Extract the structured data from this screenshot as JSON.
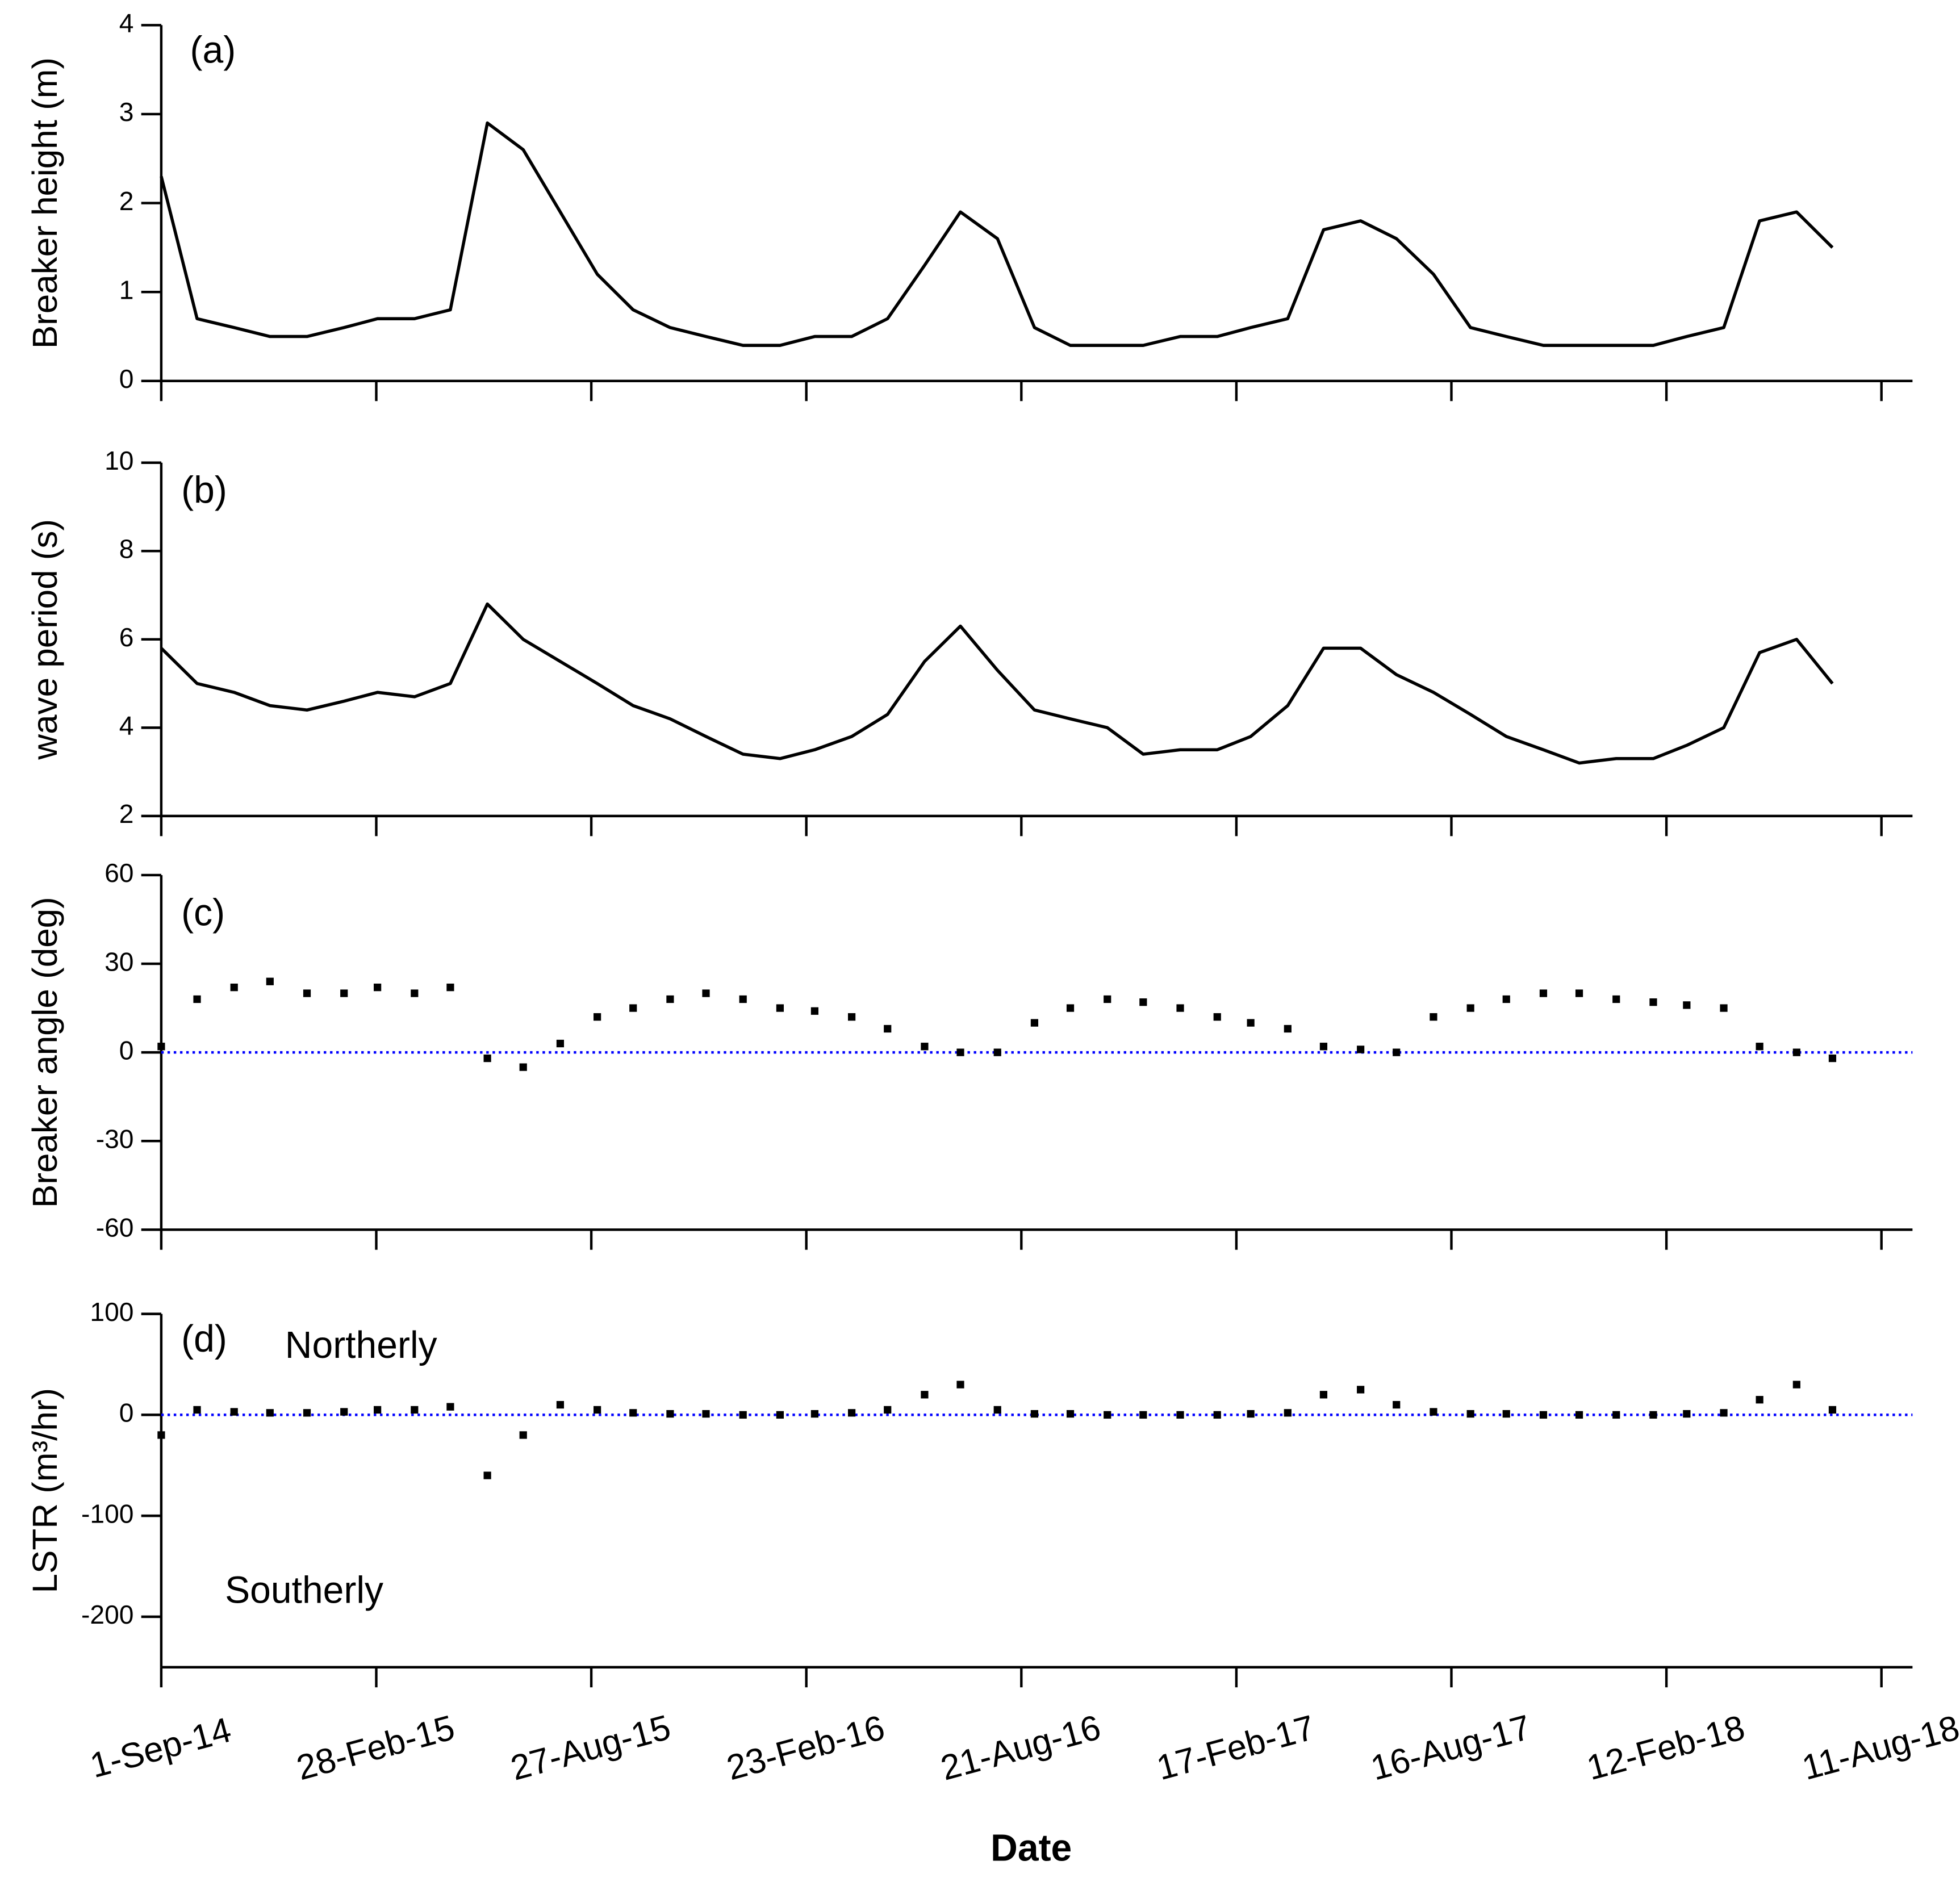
{
  "chart_data": [
    {
      "type": "line",
      "panel_label": "(a)",
      "y_label": "Breaker height (m)",
      "color": "#000000",
      "x": [
        "2014-09-01",
        "2014-10-01",
        "2014-11-01",
        "2014-12-01",
        "2015-01-01",
        "2015-02-01",
        "2015-03-01",
        "2015-04-01",
        "2015-05-01",
        "2015-06-01",
        "2015-07-01",
        "2015-08-01",
        "2015-09-01",
        "2015-10-01",
        "2015-11-01",
        "2015-12-01",
        "2016-01-01",
        "2016-02-01",
        "2016-03-01",
        "2016-04-01",
        "2016-05-01",
        "2016-06-01",
        "2016-07-01",
        "2016-08-01",
        "2016-09-01",
        "2016-10-01",
        "2016-11-01",
        "2016-12-01",
        "2017-01-01",
        "2017-02-01",
        "2017-03-01",
        "2017-04-01",
        "2017-05-01",
        "2017-06-01",
        "2017-07-01",
        "2017-08-01",
        "2017-09-01",
        "2017-10-01",
        "2017-11-01",
        "2017-12-01",
        "2018-01-01",
        "2018-02-01",
        "2018-03-01",
        "2018-04-01",
        "2018-05-01",
        "2018-06-01",
        "2018-07-01"
      ],
      "values": [
        2.3,
        0.7,
        0.6,
        0.5,
        0.5,
        0.6,
        0.7,
        0.7,
        0.8,
        2.9,
        2.6,
        1.9,
        1.2,
        0.8,
        0.6,
        0.5,
        0.4,
        0.4,
        0.5,
        0.5,
        0.7,
        1.3,
        1.9,
        1.6,
        0.6,
        0.4,
        0.4,
        0.4,
        0.5,
        0.5,
        0.6,
        0.7,
        1.7,
        1.8,
        1.6,
        1.2,
        0.6,
        0.5,
        0.4,
        0.4,
        0.4,
        0.4,
        0.5,
        0.6,
        1.8,
        1.9,
        1.5
      ],
      "ylim": [
        0,
        4
      ],
      "yticks": [
        0,
        1,
        2,
        3,
        4
      ]
    },
    {
      "type": "line",
      "panel_label": "(b)",
      "y_label": "wave period (s)",
      "color": "#000000",
      "x": [
        "2014-09-01",
        "2014-10-01",
        "2014-11-01",
        "2014-12-01",
        "2015-01-01",
        "2015-02-01",
        "2015-03-01",
        "2015-04-01",
        "2015-05-01",
        "2015-06-01",
        "2015-07-01",
        "2015-08-01",
        "2015-09-01",
        "2015-10-01",
        "2015-11-01",
        "2015-12-01",
        "2016-01-01",
        "2016-02-01",
        "2016-03-01",
        "2016-04-01",
        "2016-05-01",
        "2016-06-01",
        "2016-07-01",
        "2016-08-01",
        "2016-09-01",
        "2016-10-01",
        "2016-11-01",
        "2016-12-01",
        "2017-01-01",
        "2017-02-01",
        "2017-03-01",
        "2017-04-01",
        "2017-05-01",
        "2017-06-01",
        "2017-07-01",
        "2017-08-01",
        "2017-09-01",
        "2017-10-01",
        "2017-11-01",
        "2017-12-01",
        "2018-01-01",
        "2018-02-01",
        "2018-03-01",
        "2018-04-01",
        "2018-05-01",
        "2018-06-01",
        "2018-07-01"
      ],
      "values": [
        5.8,
        5.0,
        4.8,
        4.5,
        4.4,
        4.6,
        4.8,
        4.7,
        5.0,
        6.8,
        6.0,
        5.5,
        5.0,
        4.5,
        4.2,
        3.8,
        3.4,
        3.3,
        3.5,
        3.8,
        4.3,
        5.5,
        6.3,
        5.3,
        4.4,
        4.2,
        4.0,
        3.4,
        3.5,
        3.5,
        3.8,
        4.5,
        5.8,
        5.8,
        5.2,
        4.8,
        4.3,
        3.8,
        3.5,
        3.2,
        3.3,
        3.3,
        3.6,
        4.0,
        5.7,
        6.0,
        5.0
      ],
      "ylim": [
        2,
        10
      ],
      "yticks": [
        2,
        4,
        6,
        8,
        10
      ]
    },
    {
      "type": "scatter",
      "panel_label": "(c)",
      "y_label": "Breaker angle (deg)",
      "color": "#000000",
      "zero_line": {
        "value": 0,
        "color": "#0000ff"
      },
      "x": [
        "2014-09-01",
        "2014-10-01",
        "2014-11-01",
        "2014-12-01",
        "2015-01-01",
        "2015-02-01",
        "2015-03-01",
        "2015-04-01",
        "2015-05-01",
        "2015-06-01",
        "2015-07-01",
        "2015-08-01",
        "2015-09-01",
        "2015-10-01",
        "2015-11-01",
        "2015-12-01",
        "2016-01-01",
        "2016-02-01",
        "2016-03-01",
        "2016-04-01",
        "2016-05-01",
        "2016-06-01",
        "2016-07-01",
        "2016-08-01",
        "2016-09-01",
        "2016-10-01",
        "2016-11-01",
        "2016-12-01",
        "2017-01-01",
        "2017-02-01",
        "2017-03-01",
        "2017-04-01",
        "2017-05-01",
        "2017-06-01",
        "2017-07-01",
        "2017-08-01",
        "2017-09-01",
        "2017-10-01",
        "2017-11-01",
        "2017-12-01",
        "2018-01-01",
        "2018-02-01",
        "2018-03-01",
        "2018-04-01",
        "2018-05-01",
        "2018-06-01",
        "2018-07-01"
      ],
      "values": [
        2,
        18,
        22,
        24,
        20,
        20,
        22,
        20,
        22,
        -2,
        -5,
        3,
        12,
        15,
        18,
        20,
        18,
        15,
        14,
        12,
        8,
        2,
        0,
        0,
        10,
        15,
        18,
        17,
        15,
        12,
        10,
        8,
        2,
        1,
        0,
        12,
        15,
        18,
        20,
        20,
        18,
        17,
        16,
        15,
        2,
        0,
        -2
      ],
      "ylim": [
        -60,
        60
      ],
      "yticks": [
        -60,
        -30,
        0,
        30,
        60
      ]
    },
    {
      "type": "scatter",
      "panel_label": "(d)",
      "y_label": "LSTR (m³/hr)",
      "color": "#000000",
      "zero_line": {
        "value": 0,
        "color": "#0000ff"
      },
      "annotations": [
        "Northerly",
        "Southerly"
      ],
      "x": [
        "2014-09-01",
        "2014-10-01",
        "2014-11-01",
        "2014-12-01",
        "2015-01-01",
        "2015-02-01",
        "2015-03-01",
        "2015-04-01",
        "2015-05-01",
        "2015-06-01",
        "2015-07-01",
        "2015-08-01",
        "2015-09-01",
        "2015-10-01",
        "2015-11-01",
        "2015-12-01",
        "2016-01-01",
        "2016-02-01",
        "2016-03-01",
        "2016-04-01",
        "2016-05-01",
        "2016-06-01",
        "2016-07-01",
        "2016-08-01",
        "2016-09-01",
        "2016-10-01",
        "2016-11-01",
        "2016-12-01",
        "2017-01-01",
        "2017-02-01",
        "2017-03-01",
        "2017-04-01",
        "2017-05-01",
        "2017-06-01",
        "2017-07-01",
        "2017-08-01",
        "2017-09-01",
        "2017-10-01",
        "2017-11-01",
        "2017-12-01",
        "2018-01-01",
        "2018-02-01",
        "2018-03-01",
        "2018-04-01",
        "2018-05-01",
        "2018-06-01",
        "2018-07-01"
      ],
      "values": [
        -20,
        5,
        3,
        2,
        2,
        3,
        5,
        5,
        8,
        -60,
        -20,
        10,
        5,
        2,
        1,
        1,
        0,
        0,
        1,
        2,
        5,
        20,
        30,
        5,
        1,
        1,
        0,
        0,
        0,
        0,
        1,
        2,
        20,
        25,
        10,
        3,
        1,
        1,
        0,
        0,
        0,
        0,
        1,
        2,
        15,
        30,
        5
      ],
      "ylim": [
        -250,
        100
      ],
      "yticks": [
        -200,
        -100,
        0,
        100
      ],
      "x_label": "Date",
      "xlim": [
        "2014-09-01",
        "2018-09-06"
      ],
      "xticks": [
        {
          "value": "2014-09-01",
          "label": "1-Sep-14"
        },
        {
          "value": "2015-02-28",
          "label": "28-Feb-15"
        },
        {
          "value": "2015-08-27",
          "label": "27-Aug-15"
        },
        {
          "value": "2016-02-23",
          "label": "23-Feb-16"
        },
        {
          "value": "2016-08-21",
          "label": "21-Aug-16"
        },
        {
          "value": "2017-02-17",
          "label": "17-Feb-17"
        },
        {
          "value": "2017-08-16",
          "label": "16-Aug-17"
        },
        {
          "value": "2018-02-12",
          "label": "12-Feb-18"
        },
        {
          "value": "2018-08-11",
          "label": "11-Aug-18"
        }
      ]
    }
  ]
}
